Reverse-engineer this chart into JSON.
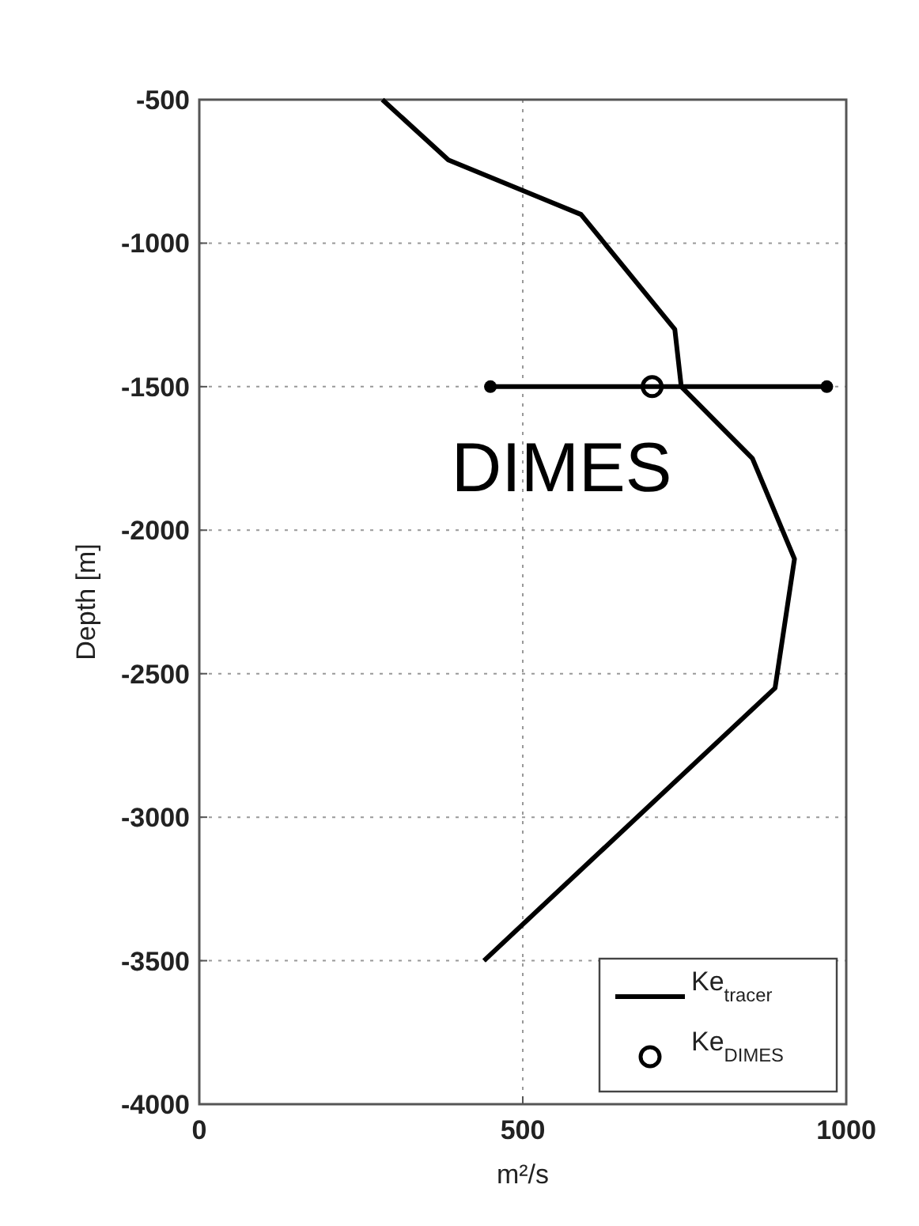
{
  "chart_data": {
    "type": "line",
    "xlabel": "m²/s",
    "ylabel": "Depth [m]",
    "xlim": [
      0,
      1000
    ],
    "xticks": [
      0,
      500,
      1000
    ],
    "ylim": [
      -4000,
      -500
    ],
    "yticks": [
      -4000,
      -3500,
      -3000,
      -2500,
      -2000,
      -1500,
      -1000,
      -500
    ],
    "grid": true,
    "legend": "bottom right",
    "annotations": [
      "DIMES"
    ],
    "series": [
      {
        "name": "Ke$_{tracer}$",
        "color": "#000000",
        "marker": "none",
        "x": [
          283,
          385,
          590,
          735,
          745,
          855,
          920,
          890,
          440
        ],
        "values": [
          -500,
          -710,
          -900,
          -1300,
          -1500,
          -1750,
          -2100,
          -2550,
          -3500
        ]
      },
      {
        "type": "line",
        "color": "#000000",
        "marker": "circle",
        "x": [
          450,
          970
        ],
        "values": [
          -1500,
          -1500
        ]
      },
      {
        "name": "Ke$_{DIMES}$",
        "type": "scatter",
        "color": "#000000",
        "marker": "circle",
        "x": [
          700
        ],
        "values": [
          -1500
        ]
      }
    ]
  }
}
